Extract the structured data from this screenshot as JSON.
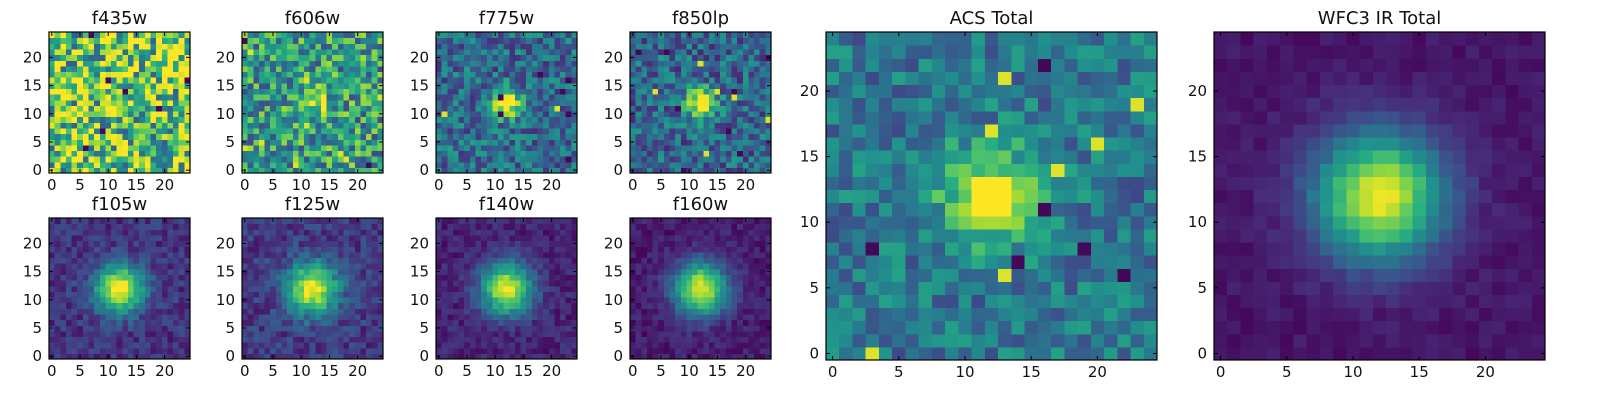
{
  "colormap": "viridis",
  "chart_data": [
    {
      "type": "heatmap",
      "title": "f435w",
      "xticks": [
        "0",
        "5",
        "10",
        "15",
        "20"
      ],
      "yticks": [
        "0",
        "5",
        "10",
        "15",
        "20"
      ],
      "xlim": [
        -0.5,
        24.5
      ],
      "ylim": [
        -0.5,
        24.5
      ],
      "source_peak": 0.0,
      "source_sigma": 3.0,
      "noise": 0.42,
      "background": 0.72
    },
    {
      "type": "heatmap",
      "title": "f606w",
      "xticks": [
        "0",
        "5",
        "10",
        "15",
        "20"
      ],
      "yticks": [
        "0",
        "5",
        "10",
        "15",
        "20"
      ],
      "xlim": [
        -0.5,
        24.5
      ],
      "ylim": [
        -0.5,
        24.5
      ],
      "source_peak": 0.35,
      "source_sigma": 2.0,
      "noise": 0.32,
      "background": 0.55
    },
    {
      "type": "heatmap",
      "title": "f775w",
      "xticks": [
        "0",
        "5",
        "10",
        "15",
        "20"
      ],
      "yticks": [
        "0",
        "5",
        "10",
        "15",
        "20"
      ],
      "xlim": [
        -0.5,
        24.5
      ],
      "ylim": [
        -0.5,
        24.5
      ],
      "source_peak": 0.75,
      "source_sigma": 1.8,
      "noise": 0.22,
      "background": 0.35
    },
    {
      "type": "heatmap",
      "title": "f850lp",
      "xticks": [
        "0",
        "5",
        "10",
        "15",
        "20"
      ],
      "yticks": [
        "0",
        "5",
        "10",
        "15",
        "20"
      ],
      "xlim": [
        -0.5,
        24.5
      ],
      "ylim": [
        -0.5,
        24.5
      ],
      "source_peak": 0.72,
      "source_sigma": 1.9,
      "noise": 0.22,
      "background": 0.33
    },
    {
      "type": "heatmap",
      "title": "f105w",
      "xticks": [
        "0",
        "5",
        "10",
        "15",
        "20"
      ],
      "yticks": [
        "0",
        "5",
        "10",
        "15",
        "20"
      ],
      "xlim": [
        -0.5,
        24.5
      ],
      "ylim": [
        -0.5,
        24.5
      ],
      "source_peak": 0.85,
      "source_sigma": 3.0,
      "noise": 0.1,
      "background": 0.15
    },
    {
      "type": "heatmap",
      "title": "f125w",
      "xticks": [
        "0",
        "5",
        "10",
        "15",
        "20"
      ],
      "yticks": [
        "0",
        "5",
        "10",
        "15",
        "20"
      ],
      "xlim": [
        -0.5,
        24.5
      ],
      "ylim": [
        -0.5,
        24.5
      ],
      "source_peak": 0.82,
      "source_sigma": 3.2,
      "noise": 0.11,
      "background": 0.17
    },
    {
      "type": "heatmap",
      "title": "f140w",
      "xticks": [
        "0",
        "5",
        "10",
        "15",
        "20"
      ],
      "yticks": [
        "0",
        "5",
        "10",
        "15",
        "20"
      ],
      "xlim": [
        -0.5,
        24.5
      ],
      "ylim": [
        -0.5,
        24.5
      ],
      "source_peak": 0.86,
      "source_sigma": 3.2,
      "noise": 0.08,
      "background": 0.1
    },
    {
      "type": "heatmap",
      "title": "f160w",
      "xticks": [
        "0",
        "5",
        "10",
        "15",
        "20"
      ],
      "yticks": [
        "0",
        "5",
        "10",
        "15",
        "20"
      ],
      "xlim": [
        -0.5,
        24.5
      ],
      "ylim": [
        -0.5,
        24.5
      ],
      "source_peak": 0.88,
      "source_sigma": 3.3,
      "noise": 0.07,
      "background": 0.08
    },
    {
      "type": "heatmap",
      "title": "ACS Total",
      "xticks": [
        "0",
        "5",
        "10",
        "15",
        "20"
      ],
      "yticks": [
        "0",
        "5",
        "10",
        "15",
        "20"
      ],
      "xlim": [
        -0.5,
        24.5
      ],
      "ylim": [
        -0.5,
        24.5
      ],
      "source_peak": 0.6,
      "source_sigma": 2.6,
      "noise": 0.18,
      "background": 0.4
    },
    {
      "type": "heatmap",
      "title": "WFC3 IR Total",
      "xticks": [
        "0",
        "5",
        "10",
        "15",
        "20"
      ],
      "yticks": [
        "0",
        "5",
        "10",
        "15",
        "20"
      ],
      "xlim": [
        -0.5,
        24.5
      ],
      "ylim": [
        -0.5,
        24.5
      ],
      "source_peak": 0.92,
      "source_sigma": 3.4,
      "noise": 0.04,
      "background": 0.06
    }
  ]
}
